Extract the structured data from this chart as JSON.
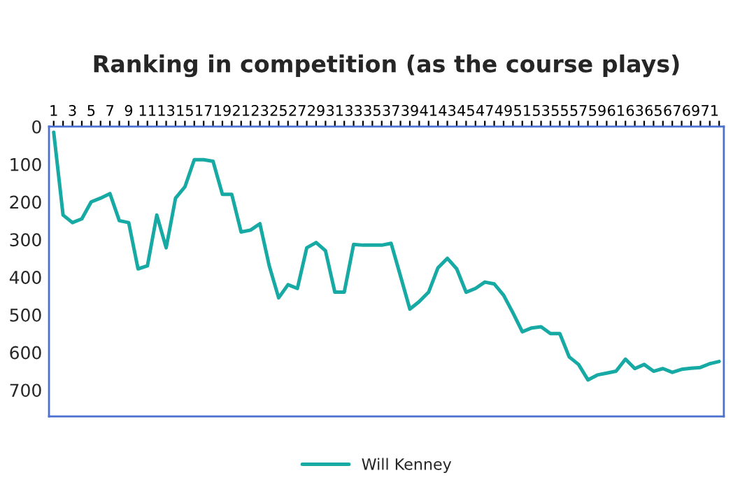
{
  "chart_data": {
    "type": "line",
    "title": "Ranking in competition (as the course plays)",
    "categories": [
      "1",
      null,
      "3",
      null,
      "5",
      null,
      "7",
      null,
      "9",
      null,
      "11",
      null,
      "13",
      null,
      "15",
      null,
      "17",
      null,
      "19",
      null,
      "21",
      null,
      "23",
      null,
      "25",
      null,
      "27",
      null,
      "29",
      null,
      "31",
      null,
      "33",
      null,
      "35",
      null,
      "37",
      null,
      "39",
      null,
      "41",
      null,
      "43",
      null,
      "45",
      null,
      "47",
      null,
      "49",
      null,
      "51",
      null,
      "53",
      null,
      "55",
      null,
      "57",
      null,
      "59",
      null,
      "61",
      null,
      "63",
      null,
      "65",
      null,
      "67",
      null,
      "69",
      null,
      "71",
      null
    ],
    "series": [
      {
        "name": "Will Kenney",
        "color": "#17a9a3",
        "values": [
          15,
          235,
          255,
          245,
          200,
          190,
          178,
          250,
          255,
          378,
          370,
          235,
          322,
          190,
          160,
          88,
          88,
          92,
          180,
          180,
          280,
          275,
          258,
          370,
          455,
          420,
          430,
          322,
          308,
          330,
          440,
          440,
          313,
          315,
          315,
          315,
          310,
          397,
          485,
          465,
          440,
          375,
          350,
          378,
          440,
          430,
          413,
          418,
          448,
          495,
          545,
          535,
          532,
          550,
          550,
          612,
          632,
          673,
          660,
          655,
          650,
          618,
          643,
          632,
          650,
          643,
          653,
          645,
          642,
          640,
          630,
          624
        ]
      }
    ],
    "ylim": [
      770,
      0
    ],
    "yticks": [
      0,
      100,
      200,
      300,
      400,
      500,
      600,
      700
    ],
    "grid": false,
    "legend": "bottom",
    "marker": "none",
    "line_style": "solid"
  }
}
